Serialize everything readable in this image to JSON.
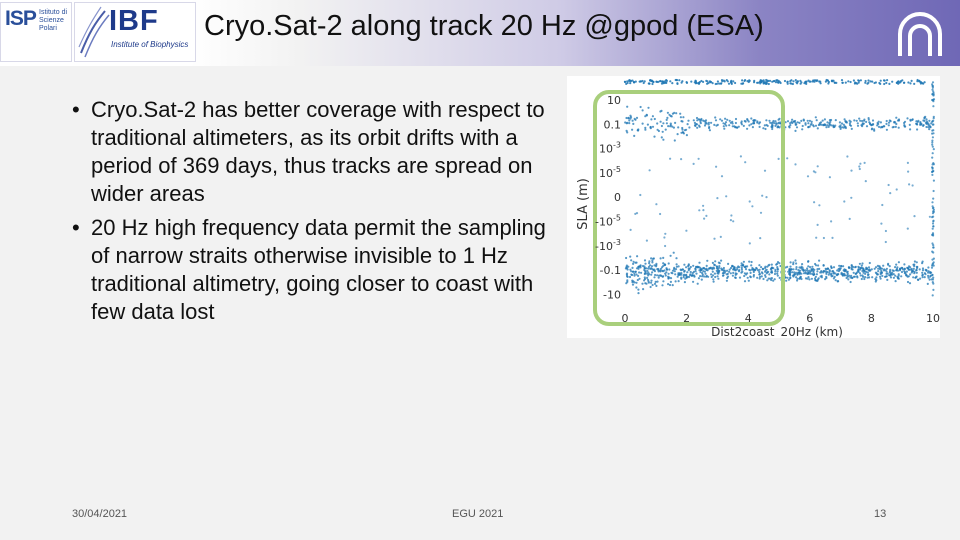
{
  "header": {
    "title": "Cryo.Sat-2 along track 20 Hz @gpod (ESA)",
    "logo_isp": {
      "mark": "ISP",
      "sub": "Istituto di Scienze Polari"
    },
    "logo_ibf": {
      "mark": "IBF",
      "sub": "Institute of Biophysics"
    }
  },
  "bullets": [
    "Cryo.Sat-2 has better coverage with respect to traditional altimeters, as its orbit drifts with a period of 369 days, thus tracks are spread on wider areas",
    "20 Hz high frequency data permit the sampling of narrow straits otherwise invisible to 1 Hz traditional altimetry, going closer to coast with few data lost"
  ],
  "chart_data": {
    "type": "scatter",
    "xlabel": "Dist2coast_20Hz (km)",
    "ylabel": "SLA (m)",
    "xlim": [
      0,
      10
    ],
    "x_ticks": [
      "0",
      "2",
      "4",
      "6",
      "8",
      "10"
    ],
    "y_ticks": [
      "10",
      "0.1",
      "10^-3",
      "10^-5",
      "0",
      "-10^-5",
      "-10^-3",
      "-0.1",
      "-10"
    ],
    "y_scale": "symlog",
    "highlight": {
      "x_range": [
        0,
        5
      ],
      "color": "#a9cf7c"
    },
    "marker_color": "#1f77b4"
  },
  "footer": {
    "date": "30/04/2021",
    "event": "EGU 2021",
    "page": "13"
  }
}
